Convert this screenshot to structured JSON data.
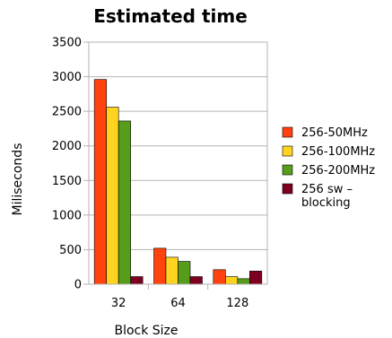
{
  "chart_data": {
    "type": "bar",
    "title": "Estimated time",
    "xlabel": "Block Size",
    "ylabel": "Miliseconds",
    "categories": [
      "32",
      "64",
      "128"
    ],
    "ylim": [
      0,
      3500
    ],
    "yticks": [
      0,
      500,
      1000,
      1500,
      2000,
      2500,
      3000,
      3500
    ],
    "grid": true,
    "legend_position": "right",
    "series": [
      {
        "name": "256-50MHz",
        "color": "#ff420e",
        "values": [
          2960,
          520,
          210
        ]
      },
      {
        "name": "256-100MHz",
        "color": "#ffd320",
        "values": [
          2560,
          390,
          110
        ]
      },
      {
        "name": "256-200MHz",
        "color": "#579d1c",
        "values": [
          2360,
          330,
          80
        ]
      },
      {
        "name": "256 sw –\nblocking",
        "color": "#7e0021",
        "values": [
          110,
          110,
          190
        ]
      }
    ]
  }
}
